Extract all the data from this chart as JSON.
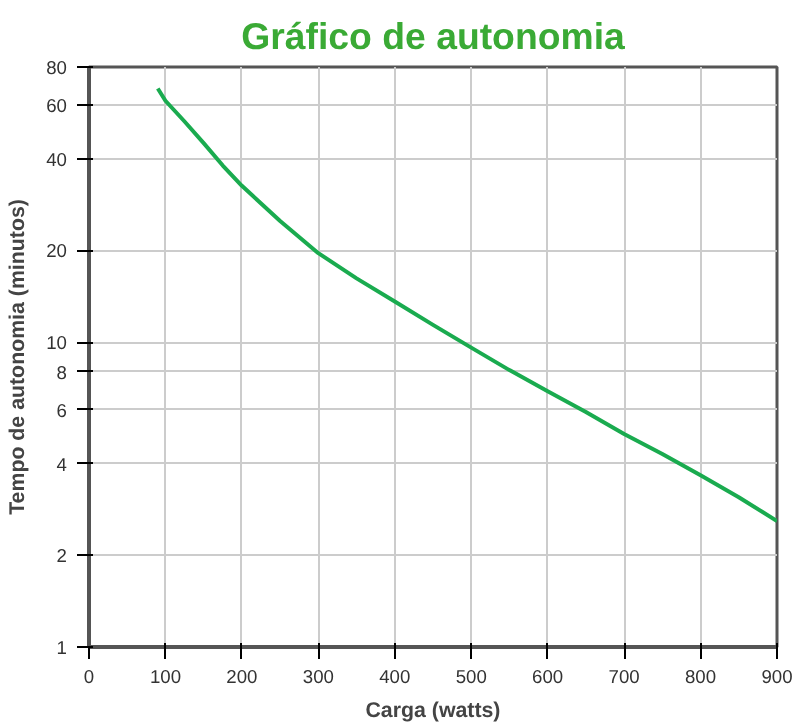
{
  "chart_data": {
    "type": "line",
    "title": "Gráfico de autonomia",
    "xlabel": "Carga (watts)",
    "ylabel": "Tempo de autonomia (minutos)",
    "x": [
      90,
      100,
      125,
      150,
      175,
      200,
      250,
      300,
      350,
      400,
      450,
      500,
      550,
      600,
      650,
      700,
      750,
      800,
      850,
      900
    ],
    "series": [
      {
        "color": "#1aab4f",
        "values": [
          68,
          62,
          53,
          45,
          38,
          32.6,
          25,
          19.6,
          16.2,
          13.6,
          11.4,
          9.6,
          8.1,
          6.9,
          5.9,
          5.0,
          4.3,
          3.66,
          3.1,
          2.59
        ]
      }
    ],
    "xlim": [
      0,
      900
    ],
    "ylim": [
      1,
      80
    ],
    "xticks": [
      0,
      100,
      200,
      300,
      400,
      500,
      600,
      700,
      800,
      900
    ],
    "yticks": [
      1,
      2,
      4,
      6,
      8,
      10,
      20,
      40,
      60,
      80
    ],
    "log": "y",
    "grid": true,
    "marker": "none",
    "line_style": "solid"
  }
}
